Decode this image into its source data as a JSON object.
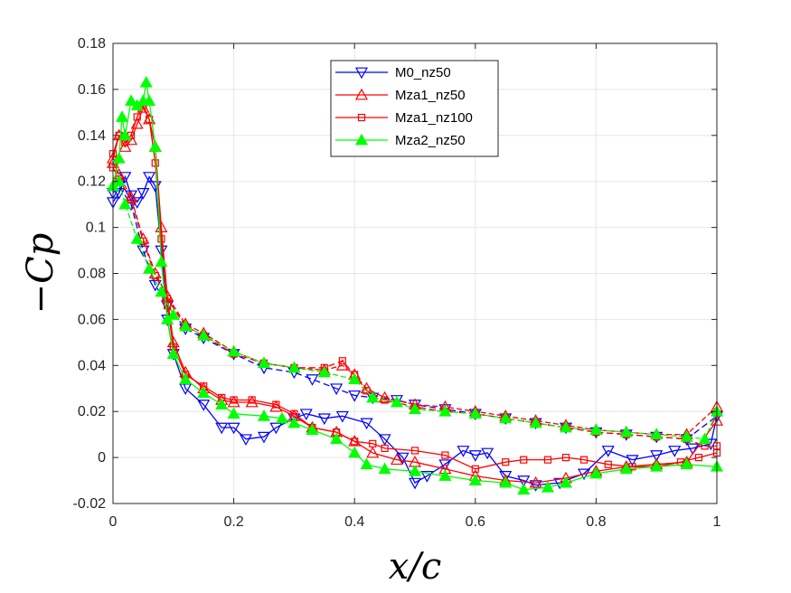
{
  "chart_data": {
    "type": "line",
    "title": "",
    "xlabel": "x/c",
    "ylabel": "−Cp",
    "xlim": [
      0,
      1
    ],
    "ylim": [
      -0.02,
      0.18
    ],
    "xticks": [
      0,
      0.2,
      0.4,
      0.6,
      0.8,
      1
    ],
    "xtick_labels": [
      "0",
      "0.2",
      "0.4",
      "0.6",
      "0.8",
      "1"
    ],
    "yticks": [
      -0.02,
      0,
      0.02,
      0.04,
      0.06,
      0.08,
      0.1,
      0.12,
      0.14,
      0.16,
      0.18
    ],
    "ytick_labels": [
      "-0.02",
      "0",
      "0.02",
      "0.04",
      "0.06",
      "0.08",
      "0.1",
      "0.12",
      "0.14",
      "0.16",
      "0.18"
    ],
    "grid": true,
    "legend_position": "top-center",
    "series": [
      {
        "name": "M0_nz50",
        "color": "#0000ff",
        "marker": "triangle-down",
        "marker_fill": "none",
        "upper": [
          [
            0,
            0.111
          ],
          [
            0.01,
            0.115
          ],
          [
            0.02,
            0.122
          ],
          [
            0.03,
            0.114
          ],
          [
            0.04,
            0.111
          ],
          [
            0.05,
            0.115
          ],
          [
            0.06,
            0.122
          ],
          [
            0.07,
            0.118
          ],
          [
            0.08,
            0.09
          ],
          [
            0.09,
            0.06
          ],
          [
            0.1,
            0.045
          ],
          [
            0.12,
            0.03
          ],
          [
            0.15,
            0.023
          ],
          [
            0.18,
            0.013
          ],
          [
            0.2,
            0.013
          ],
          [
            0.22,
            0.008
          ],
          [
            0.25,
            0.009
          ],
          [
            0.27,
            0.013
          ],
          [
            0.3,
            0.017
          ],
          [
            0.32,
            0.019
          ],
          [
            0.35,
            0.017
          ],
          [
            0.38,
            0.018
          ],
          [
            0.42,
            0.015
          ],
          [
            0.45,
            0.008
          ],
          [
            0.48,
            0.0
          ],
          [
            0.5,
            -0.011
          ],
          [
            0.52,
            -0.008
          ],
          [
            0.55,
            -0.003
          ],
          [
            0.58,
            0.003
          ],
          [
            0.6,
            0.001
          ],
          [
            0.62,
            0.002
          ],
          [
            0.65,
            -0.008
          ],
          [
            0.68,
            -0.01
          ],
          [
            0.7,
            -0.012
          ],
          [
            0.74,
            -0.011
          ],
          [
            0.78,
            -0.007
          ],
          [
            0.82,
            0.003
          ],
          [
            0.86,
            -0.001
          ],
          [
            0.9,
            0.001
          ],
          [
            0.93,
            0.003
          ],
          [
            0.96,
            0.004
          ],
          [
            0.99,
            0.006
          ],
          [
            1.0,
            0.018
          ]
        ],
        "lower": [
          [
            0.0,
            0.115
          ],
          [
            0.01,
            0.118
          ],
          [
            0.03,
            0.11
          ],
          [
            0.05,
            0.09
          ],
          [
            0.07,
            0.075
          ],
          [
            0.09,
            0.066
          ],
          [
            0.12,
            0.056
          ],
          [
            0.15,
            0.052
          ],
          [
            0.2,
            0.045
          ],
          [
            0.25,
            0.039
          ],
          [
            0.3,
            0.037
          ],
          [
            0.33,
            0.034
          ],
          [
            0.37,
            0.03
          ],
          [
            0.4,
            0.027
          ],
          [
            0.43,
            0.026
          ],
          [
            0.47,
            0.025
          ],
          [
            0.5,
            0.023
          ],
          [
            0.55,
            0.021
          ],
          [
            0.6,
            0.019
          ],
          [
            0.65,
            0.017
          ],
          [
            0.7,
            0.015
          ],
          [
            0.75,
            0.013
          ],
          [
            0.8,
            0.011
          ],
          [
            0.85,
            0.01
          ],
          [
            0.9,
            0.009
          ],
          [
            0.95,
            0.008
          ],
          [
            1.0,
            0.018
          ]
        ]
      },
      {
        "name": "Mza1_nz50",
        "color": "#ff0000",
        "marker": "triangle-up",
        "marker_fill": "none",
        "upper": [
          [
            0,
            0.13
          ],
          [
            0.01,
            0.14
          ],
          [
            0.02,
            0.135
          ],
          [
            0.03,
            0.138
          ],
          [
            0.04,
            0.145
          ],
          [
            0.05,
            0.152
          ],
          [
            0.06,
            0.147
          ],
          [
            0.07,
            0.135
          ],
          [
            0.08,
            0.1
          ],
          [
            0.09,
            0.07
          ],
          [
            0.1,
            0.05
          ],
          [
            0.12,
            0.037
          ],
          [
            0.15,
            0.03
          ],
          [
            0.18,
            0.025
          ],
          [
            0.2,
            0.024
          ],
          [
            0.23,
            0.024
          ],
          [
            0.27,
            0.022
          ],
          [
            0.3,
            0.018
          ],
          [
            0.33,
            0.013
          ],
          [
            0.37,
            0.011
          ],
          [
            0.4,
            0.007
          ],
          [
            0.43,
            0.002
          ],
          [
            0.47,
            -0.001
          ],
          [
            0.5,
            -0.002
          ],
          [
            0.55,
            -0.005
          ],
          [
            0.6,
            -0.008
          ],
          [
            0.65,
            -0.01
          ],
          [
            0.7,
            -0.011
          ],
          [
            0.75,
            -0.009
          ],
          [
            0.8,
            -0.006
          ],
          [
            0.85,
            -0.004
          ],
          [
            0.9,
            -0.003
          ],
          [
            0.95,
            -0.002
          ],
          [
            1.0,
            0.016
          ]
        ],
        "lower": [
          [
            0.0,
            0.128
          ],
          [
            0.01,
            0.123
          ],
          [
            0.03,
            0.113
          ],
          [
            0.05,
            0.095
          ],
          [
            0.07,
            0.08
          ],
          [
            0.09,
            0.07
          ],
          [
            0.12,
            0.058
          ],
          [
            0.15,
            0.054
          ],
          [
            0.2,
            0.046
          ],
          [
            0.25,
            0.041
          ],
          [
            0.3,
            0.039
          ],
          [
            0.35,
            0.038
          ],
          [
            0.38,
            0.04
          ],
          [
            0.4,
            0.036
          ],
          [
            0.42,
            0.03
          ],
          [
            0.45,
            0.026
          ],
          [
            0.5,
            0.023
          ],
          [
            0.55,
            0.022
          ],
          [
            0.6,
            0.02
          ],
          [
            0.65,
            0.018
          ],
          [
            0.7,
            0.016
          ],
          [
            0.75,
            0.014
          ],
          [
            0.8,
            0.012
          ],
          [
            0.85,
            0.011
          ],
          [
            0.9,
            0.01
          ],
          [
            0.95,
            0.01
          ],
          [
            1.0,
            0.022
          ]
        ]
      },
      {
        "name": "Mza1_nz100",
        "color": "#ff0000",
        "marker": "square",
        "marker_fill": "none",
        "upper": [
          [
            0,
            0.132
          ],
          [
            0.01,
            0.14
          ],
          [
            0.02,
            0.137
          ],
          [
            0.03,
            0.14
          ],
          [
            0.04,
            0.148
          ],
          [
            0.05,
            0.153
          ],
          [
            0.06,
            0.147
          ],
          [
            0.07,
            0.128
          ],
          [
            0.08,
            0.095
          ],
          [
            0.09,
            0.066
          ],
          [
            0.1,
            0.048
          ],
          [
            0.12,
            0.036
          ],
          [
            0.15,
            0.031
          ],
          [
            0.18,
            0.026
          ],
          [
            0.2,
            0.025
          ],
          [
            0.23,
            0.025
          ],
          [
            0.27,
            0.023
          ],
          [
            0.3,
            0.019
          ],
          [
            0.33,
            0.013
          ],
          [
            0.37,
            0.011
          ],
          [
            0.4,
            0.007
          ],
          [
            0.43,
            0.006
          ],
          [
            0.45,
            0.004
          ],
          [
            0.5,
            0.003
          ],
          [
            0.55,
            0.001
          ],
          [
            0.6,
            -0.005
          ],
          [
            0.65,
            -0.002
          ],
          [
            0.68,
            -0.001
          ],
          [
            0.72,
            -0.001
          ],
          [
            0.75,
            0.0
          ],
          [
            0.78,
            -0.001
          ],
          [
            0.82,
            -0.003
          ],
          [
            0.86,
            -0.004
          ],
          [
            0.9,
            -0.004
          ],
          [
            0.94,
            -0.002
          ],
          [
            0.97,
            0.0
          ],
          [
            1.0,
            0.002
          ]
        ],
        "lower": [
          [
            0.0,
            0.126
          ],
          [
            0.01,
            0.121
          ],
          [
            0.03,
            0.112
          ],
          [
            0.05,
            0.094
          ],
          [
            0.07,
            0.079
          ],
          [
            0.09,
            0.069
          ],
          [
            0.12,
            0.057
          ],
          [
            0.15,
            0.053
          ],
          [
            0.2,
            0.045
          ],
          [
            0.25,
            0.041
          ],
          [
            0.3,
            0.039
          ],
          [
            0.35,
            0.039
          ],
          [
            0.38,
            0.042
          ],
          [
            0.4,
            0.036
          ],
          [
            0.42,
            0.029
          ],
          [
            0.45,
            0.025
          ],
          [
            0.5,
            0.022
          ],
          [
            0.55,
            0.02
          ],
          [
            0.6,
            0.019
          ],
          [
            0.65,
            0.017
          ],
          [
            0.7,
            0.015
          ],
          [
            0.75,
            0.013
          ],
          [
            0.8,
            0.011
          ],
          [
            0.85,
            0.01
          ],
          [
            0.9,
            0.009
          ],
          [
            0.95,
            0.008
          ],
          [
            0.98,
            0.005
          ],
          [
            1.0,
            0.005
          ]
        ]
      },
      {
        "name": "Mza2_nz50",
        "color": "#00ff00",
        "marker": "triangle-up",
        "marker_fill": "filled",
        "upper": [
          [
            0,
            0.118
          ],
          [
            0.01,
            0.13
          ],
          [
            0.015,
            0.148
          ],
          [
            0.02,
            0.14
          ],
          [
            0.03,
            0.155
          ],
          [
            0.04,
            0.153
          ],
          [
            0.05,
            0.155
          ],
          [
            0.055,
            0.163
          ],
          [
            0.06,
            0.155
          ],
          [
            0.07,
            0.135
          ],
          [
            0.08,
            0.085
          ],
          [
            0.09,
            0.06
          ],
          [
            0.1,
            0.045
          ],
          [
            0.12,
            0.034
          ],
          [
            0.15,
            0.028
          ],
          [
            0.18,
            0.023
          ],
          [
            0.2,
            0.019
          ],
          [
            0.25,
            0.018
          ],
          [
            0.28,
            0.017
          ],
          [
            0.3,
            0.015
          ],
          [
            0.33,
            0.012
          ],
          [
            0.37,
            0.008
          ],
          [
            0.4,
            0.002
          ],
          [
            0.42,
            -0.003
          ],
          [
            0.45,
            -0.005
          ],
          [
            0.5,
            -0.006
          ],
          [
            0.55,
            -0.008
          ],
          [
            0.6,
            -0.01
          ],
          [
            0.65,
            -0.011
          ],
          [
            0.68,
            -0.014
          ],
          [
            0.72,
            -0.013
          ],
          [
            0.75,
            -0.011
          ],
          [
            0.8,
            -0.007
          ],
          [
            0.85,
            -0.005
          ],
          [
            0.9,
            -0.004
          ],
          [
            0.95,
            -0.003
          ],
          [
            1.0,
            -0.004
          ]
        ],
        "lower": [
          [
            0.0,
            0.118
          ],
          [
            0.01,
            0.12
          ],
          [
            0.02,
            0.11
          ],
          [
            0.04,
            0.095
          ],
          [
            0.06,
            0.082
          ],
          [
            0.08,
            0.072
          ],
          [
            0.1,
            0.062
          ],
          [
            0.12,
            0.057
          ],
          [
            0.15,
            0.053
          ],
          [
            0.2,
            0.046
          ],
          [
            0.25,
            0.041
          ],
          [
            0.3,
            0.039
          ],
          [
            0.35,
            0.037
          ],
          [
            0.4,
            0.034
          ],
          [
            0.43,
            0.026
          ],
          [
            0.47,
            0.024
          ],
          [
            0.5,
            0.021
          ],
          [
            0.55,
            0.02
          ],
          [
            0.6,
            0.019
          ],
          [
            0.65,
            0.017
          ],
          [
            0.7,
            0.015
          ],
          [
            0.75,
            0.013
          ],
          [
            0.8,
            0.012
          ],
          [
            0.85,
            0.011
          ],
          [
            0.9,
            0.01
          ],
          [
            0.95,
            0.009
          ],
          [
            0.98,
            0.008
          ],
          [
            1.0,
            0.02
          ]
        ]
      }
    ]
  }
}
